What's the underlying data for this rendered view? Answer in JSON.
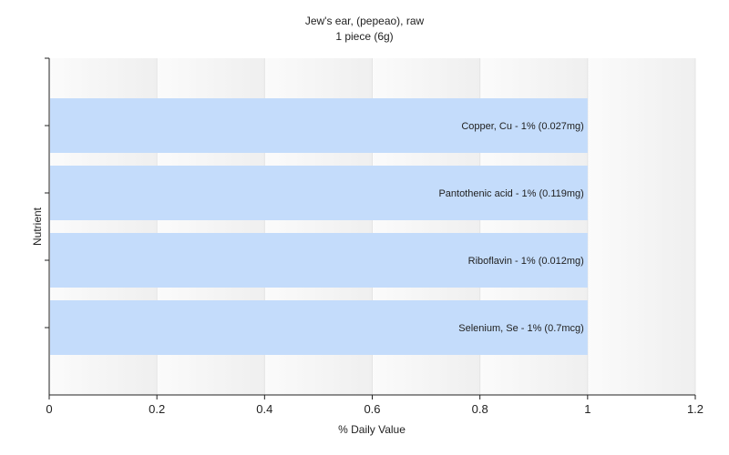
{
  "chart_data": {
    "type": "bar",
    "orientation": "horizontal",
    "title": "Jew's ear, (pepeao), raw",
    "subtitle": "1 piece (6g)",
    "xlabel": "% Daily Value",
    "ylabel": "Nutrient",
    "xlim": [
      0,
      1.2
    ],
    "x_ticks": [
      "0",
      "0.2",
      "0.4",
      "0.6",
      "0.8",
      "1",
      "1.2"
    ],
    "grid": true,
    "bar_color": "#c4dcfb",
    "categories": [
      "Copper, Cu - 1% (0.027mg)",
      "Pantothenic acid - 1% (0.119mg)",
      "Riboflavin - 1% (0.012mg)",
      "Selenium, Se - 1% (0.7mcg)"
    ],
    "values": [
      1,
      1,
      1,
      1
    ]
  }
}
